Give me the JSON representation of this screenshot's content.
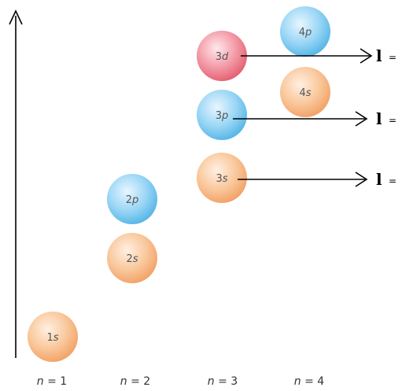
{
  "orbitals": {
    "o1s": {
      "num": "1",
      "letter": "s"
    },
    "o2s": {
      "num": "2",
      "letter": "s"
    },
    "o2p": {
      "num": "2",
      "letter": "p"
    },
    "o3s": {
      "num": "3",
      "letter": "s"
    },
    "o3p": {
      "num": "3",
      "letter": "p"
    },
    "o3d": {
      "num": "3",
      "letter": "d"
    },
    "o4s": {
      "num": "4",
      "letter": "s"
    },
    "o4p": {
      "num": "4",
      "letter": "p"
    }
  },
  "shell_labels": {
    "n1": {
      "var": "n",
      "eq": " = 1"
    },
    "n2": {
      "var": "n",
      "eq": " = 2"
    },
    "n3": {
      "var": "n",
      "eq": " = 3"
    },
    "n4": {
      "var": "n",
      "eq": " = 4"
    }
  },
  "l_labels": {
    "top": {
      "symbol": "l",
      "eq": "="
    },
    "middle": {
      "symbol": "l",
      "eq": "="
    },
    "bottom": {
      "symbol": "l",
      "eq": "="
    }
  },
  "colors": {
    "s_orbital": "#f7b37f",
    "p_orbital": "#73c4ee",
    "d_orbital": "#ee6f80"
  }
}
